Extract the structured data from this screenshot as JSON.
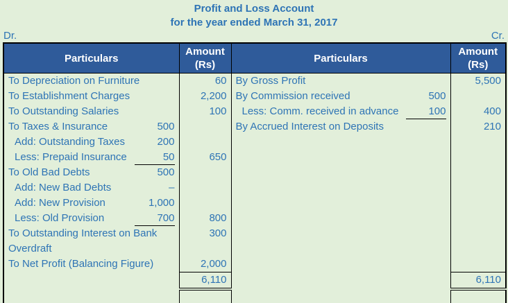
{
  "page": {
    "background_color": "#e2efda",
    "header_bg_color": "#2f5b9a",
    "text_color": "#2e74b5",
    "border_color": "#000000"
  },
  "header": {
    "title_line1": "Profit and Loss Account",
    "title_line2": "for the year ended March 31, 2017",
    "dr_label": "Dr.",
    "cr_label": "Cr."
  },
  "table": {
    "columns": [
      {
        "label": "Particulars"
      },
      {
        "label": "Amount",
        "sublabel": "(Rs)"
      },
      {
        "label": "Particulars"
      },
      {
        "label": "Amount",
        "sublabel": "(Rs)"
      }
    ],
    "rows": [
      {
        "p1": "To Depreciation on Furniture",
        "a1": "60",
        "p2": "By Gross Profit",
        "a2": "5,500"
      },
      {
        "p1": "To Establishment Charges",
        "a1": "2,200",
        "p2": "By Commission received",
        "p2sub": "500"
      },
      {
        "p1": "To Outstanding Salaries",
        "a1": "100",
        "p2": "Less: Comm. received in advance",
        "p2_indent": true,
        "p2sub": "100",
        "p2sub_u": true,
        "a2": "400"
      },
      {
        "p1": "To Taxes & Insurance",
        "p1sub": "500",
        "p2": "By Accrued Interest on Deposits",
        "a2": "210"
      },
      {
        "p1": "Add: Outstanding Taxes",
        "p1_indent": true,
        "p1sub": "200"
      },
      {
        "p1": "Less: Prepaid Insurance",
        "p1_indent": true,
        "p1sub": "50",
        "p1sub_u": true,
        "a1": "650"
      },
      {
        "p1": "To Old Bad Debts",
        "p1sub": "500"
      },
      {
        "p1": "Add: New Bad Debts",
        "p1_indent": true,
        "p1sub": "–"
      },
      {
        "p1": "Add: New Provision",
        "p1_indent": true,
        "p1sub": "1,000"
      },
      {
        "p1": "Less: Old Provision",
        "p1_indent": true,
        "p1sub": "700",
        "p1sub_u": true,
        "a1": "800"
      },
      {
        "p1": "To Outstanding Interest on Bank",
        "a1": "300"
      },
      {
        "p1": "Overdraft"
      },
      {
        "p1": "To Net Profit (Balancing Figure)",
        "a1": "2,000"
      }
    ],
    "totals": {
      "debit": "6,110",
      "credit": "6,110"
    }
  }
}
